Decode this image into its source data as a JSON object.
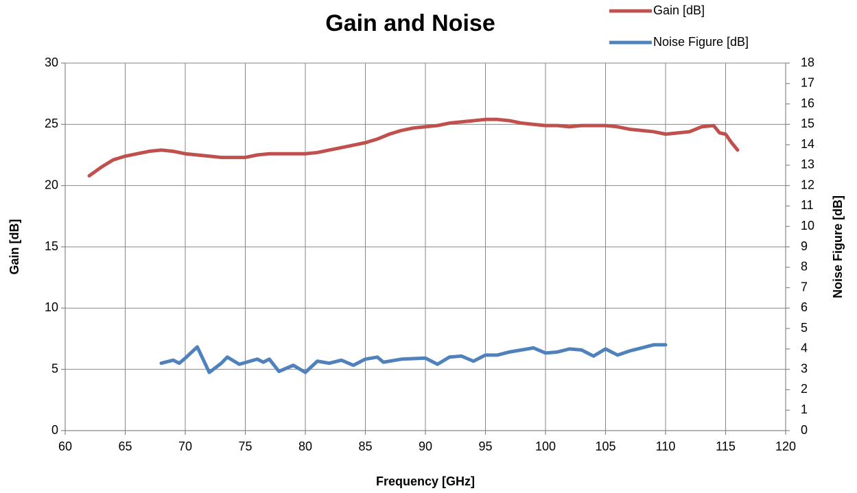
{
  "chart_data": {
    "type": "line",
    "title": "Gain and Noise",
    "xlabel": "Frequency [GHz]",
    "ylabel": "Gain [dB]",
    "y2label": "Noise Figure  [dB]",
    "xlim": [
      60,
      120
    ],
    "xticks": [
      60,
      65,
      70,
      75,
      80,
      85,
      90,
      95,
      100,
      105,
      110,
      115,
      120
    ],
    "ylim": [
      0,
      30
    ],
    "yticks": [
      0,
      5,
      10,
      15,
      20,
      25,
      30
    ],
    "y2lim": [
      0,
      18
    ],
    "y2ticks": [
      0,
      1,
      2,
      3,
      4,
      5,
      6,
      7,
      8,
      9,
      10,
      11,
      12,
      13,
      14,
      15,
      16,
      17,
      18
    ],
    "grid": true,
    "legend": "top-right",
    "series": [
      {
        "name": "Gain [dB]",
        "color": "#c0504d",
        "x": [
          62,
          63,
          64,
          65,
          66,
          67,
          68,
          69,
          70,
          71,
          72,
          73,
          74,
          75,
          76,
          77,
          78,
          79,
          80,
          81,
          82,
          83,
          84,
          85,
          86,
          87,
          88,
          89,
          90,
          91,
          92,
          93,
          94,
          95,
          96,
          97,
          98,
          99,
          100,
          101,
          102,
          103,
          104,
          105,
          106,
          107,
          108,
          109,
          110,
          111,
          112,
          113,
          114,
          114.5,
          115,
          115.5,
          116
        ],
        "values": [
          20.8,
          21.5,
          22.1,
          22.4,
          22.6,
          22.8,
          22.9,
          22.8,
          22.6,
          22.5,
          22.4,
          22.3,
          22.3,
          22.3,
          22.5,
          22.6,
          22.6,
          22.6,
          22.6,
          22.7,
          22.9,
          23.1,
          23.3,
          23.5,
          23.8,
          24.2,
          24.5,
          24.7,
          24.8,
          24.9,
          25.1,
          25.2,
          25.3,
          25.4,
          25.4,
          25.3,
          25.1,
          25.0,
          24.9,
          24.9,
          24.8,
          24.9,
          24.9,
          24.9,
          24.8,
          24.6,
          24.5,
          24.4,
          24.2,
          24.3,
          24.4,
          24.8,
          24.9,
          24.3,
          24.2,
          23.5,
          22.9
        ]
      },
      {
        "name": "Noise Figure [dB]",
        "color": "#4f81bd",
        "axis": "y2",
        "x": [
          68,
          69,
          69.5,
          70,
          71,
          72,
          73,
          73.5,
          74.5,
          76,
          76.5,
          77,
          77.8,
          79,
          80,
          81,
          82,
          83,
          84,
          85,
          86,
          86.5,
          88,
          90,
          91,
          92,
          93,
          94,
          95,
          96,
          97,
          98,
          99,
          100,
          101,
          102,
          103,
          104,
          105,
          106,
          107,
          108,
          109,
          110
        ],
        "values": [
          3.3,
          3.45,
          3.3,
          3.55,
          4.1,
          2.85,
          3.3,
          3.6,
          3.25,
          3.5,
          3.35,
          3.5,
          2.9,
          3.2,
          2.85,
          3.4,
          3.3,
          3.45,
          3.2,
          3.5,
          3.6,
          3.35,
          3.5,
          3.55,
          3.25,
          3.6,
          3.65,
          3.4,
          3.7,
          3.7,
          3.85,
          3.95,
          4.05,
          3.8,
          3.85,
          4.0,
          3.95,
          3.65,
          4.0,
          3.7,
          3.9,
          4.05,
          4.2,
          4.2
        ]
      }
    ]
  }
}
